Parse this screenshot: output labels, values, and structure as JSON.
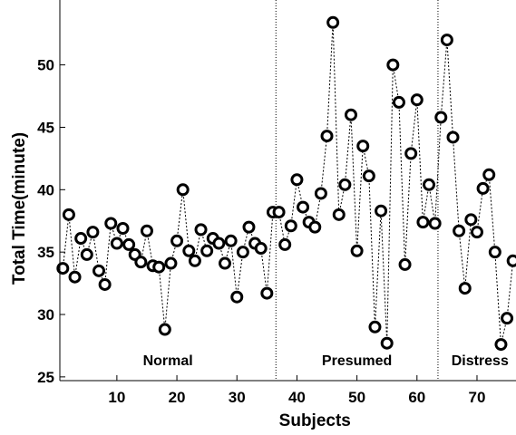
{
  "chart_data": {
    "type": "scatter",
    "title": "",
    "xlabel": "Subjects",
    "ylabel": "Total Time(minute)",
    "xlim": [
      0.5,
      76.5
    ],
    "ylim": [
      24.7,
      55.2
    ],
    "x_ticks": [
      10,
      20,
      30,
      40,
      50,
      60,
      70
    ],
    "y_ticks": [
      25,
      30,
      35,
      40,
      45,
      50
    ],
    "marker": "open-circle",
    "connector": "dotted",
    "marker_color": "#000000",
    "grid": false,
    "group_boundaries": [
      36.5,
      63.5
    ],
    "group_labels": [
      {
        "label": "Normal",
        "x_center": 18.5,
        "y": 26.3
      },
      {
        "label": "Presumed",
        "x_center": 50,
        "y": 26.3
      },
      {
        "label": "Distress",
        "x_center": 70.5,
        "y": 26.3
      }
    ],
    "x": [
      1,
      2,
      3,
      4,
      5,
      6,
      7,
      8,
      9,
      10,
      11,
      12,
      13,
      14,
      15,
      16,
      17,
      18,
      19,
      20,
      21,
      22,
      23,
      24,
      25,
      26,
      27,
      28,
      29,
      30,
      31,
      32,
      33,
      34,
      35,
      36,
      37,
      38,
      39,
      40,
      41,
      42,
      43,
      44,
      45,
      46,
      47,
      48,
      49,
      50,
      51,
      52,
      53,
      54,
      55,
      56,
      57,
      58,
      59,
      60,
      61,
      62,
      63,
      64,
      65,
      66,
      67,
      68,
      69,
      70,
      71,
      72,
      73,
      74,
      75,
      76
    ],
    "y": [
      33.7,
      38.0,
      33.0,
      36.1,
      34.8,
      36.6,
      33.5,
      32.4,
      37.3,
      35.7,
      36.9,
      35.6,
      34.8,
      34.2,
      36.7,
      33.9,
      33.8,
      28.8,
      34.1,
      35.9,
      40.0,
      35.1,
      34.3,
      36.8,
      35.1,
      36.1,
      35.7,
      34.1,
      35.9,
      31.4,
      35.0,
      37.0,
      35.7,
      35.3,
      31.7,
      38.2,
      38.2,
      35.6,
      37.1,
      40.8,
      38.6,
      37.4,
      37.0,
      39.7,
      44.3,
      53.4,
      38.0,
      40.4,
      46.0,
      35.1,
      43.5,
      41.1,
      29.0,
      38.3,
      27.7,
      50.0,
      47.0,
      34.0,
      42.9,
      47.2,
      37.4,
      40.4,
      37.3,
      45.8,
      52.0,
      44.2,
      36.7,
      32.1,
      37.6,
      36.6,
      40.1,
      41.2,
      35.0,
      27.6,
      29.7,
      34.3
    ]
  }
}
